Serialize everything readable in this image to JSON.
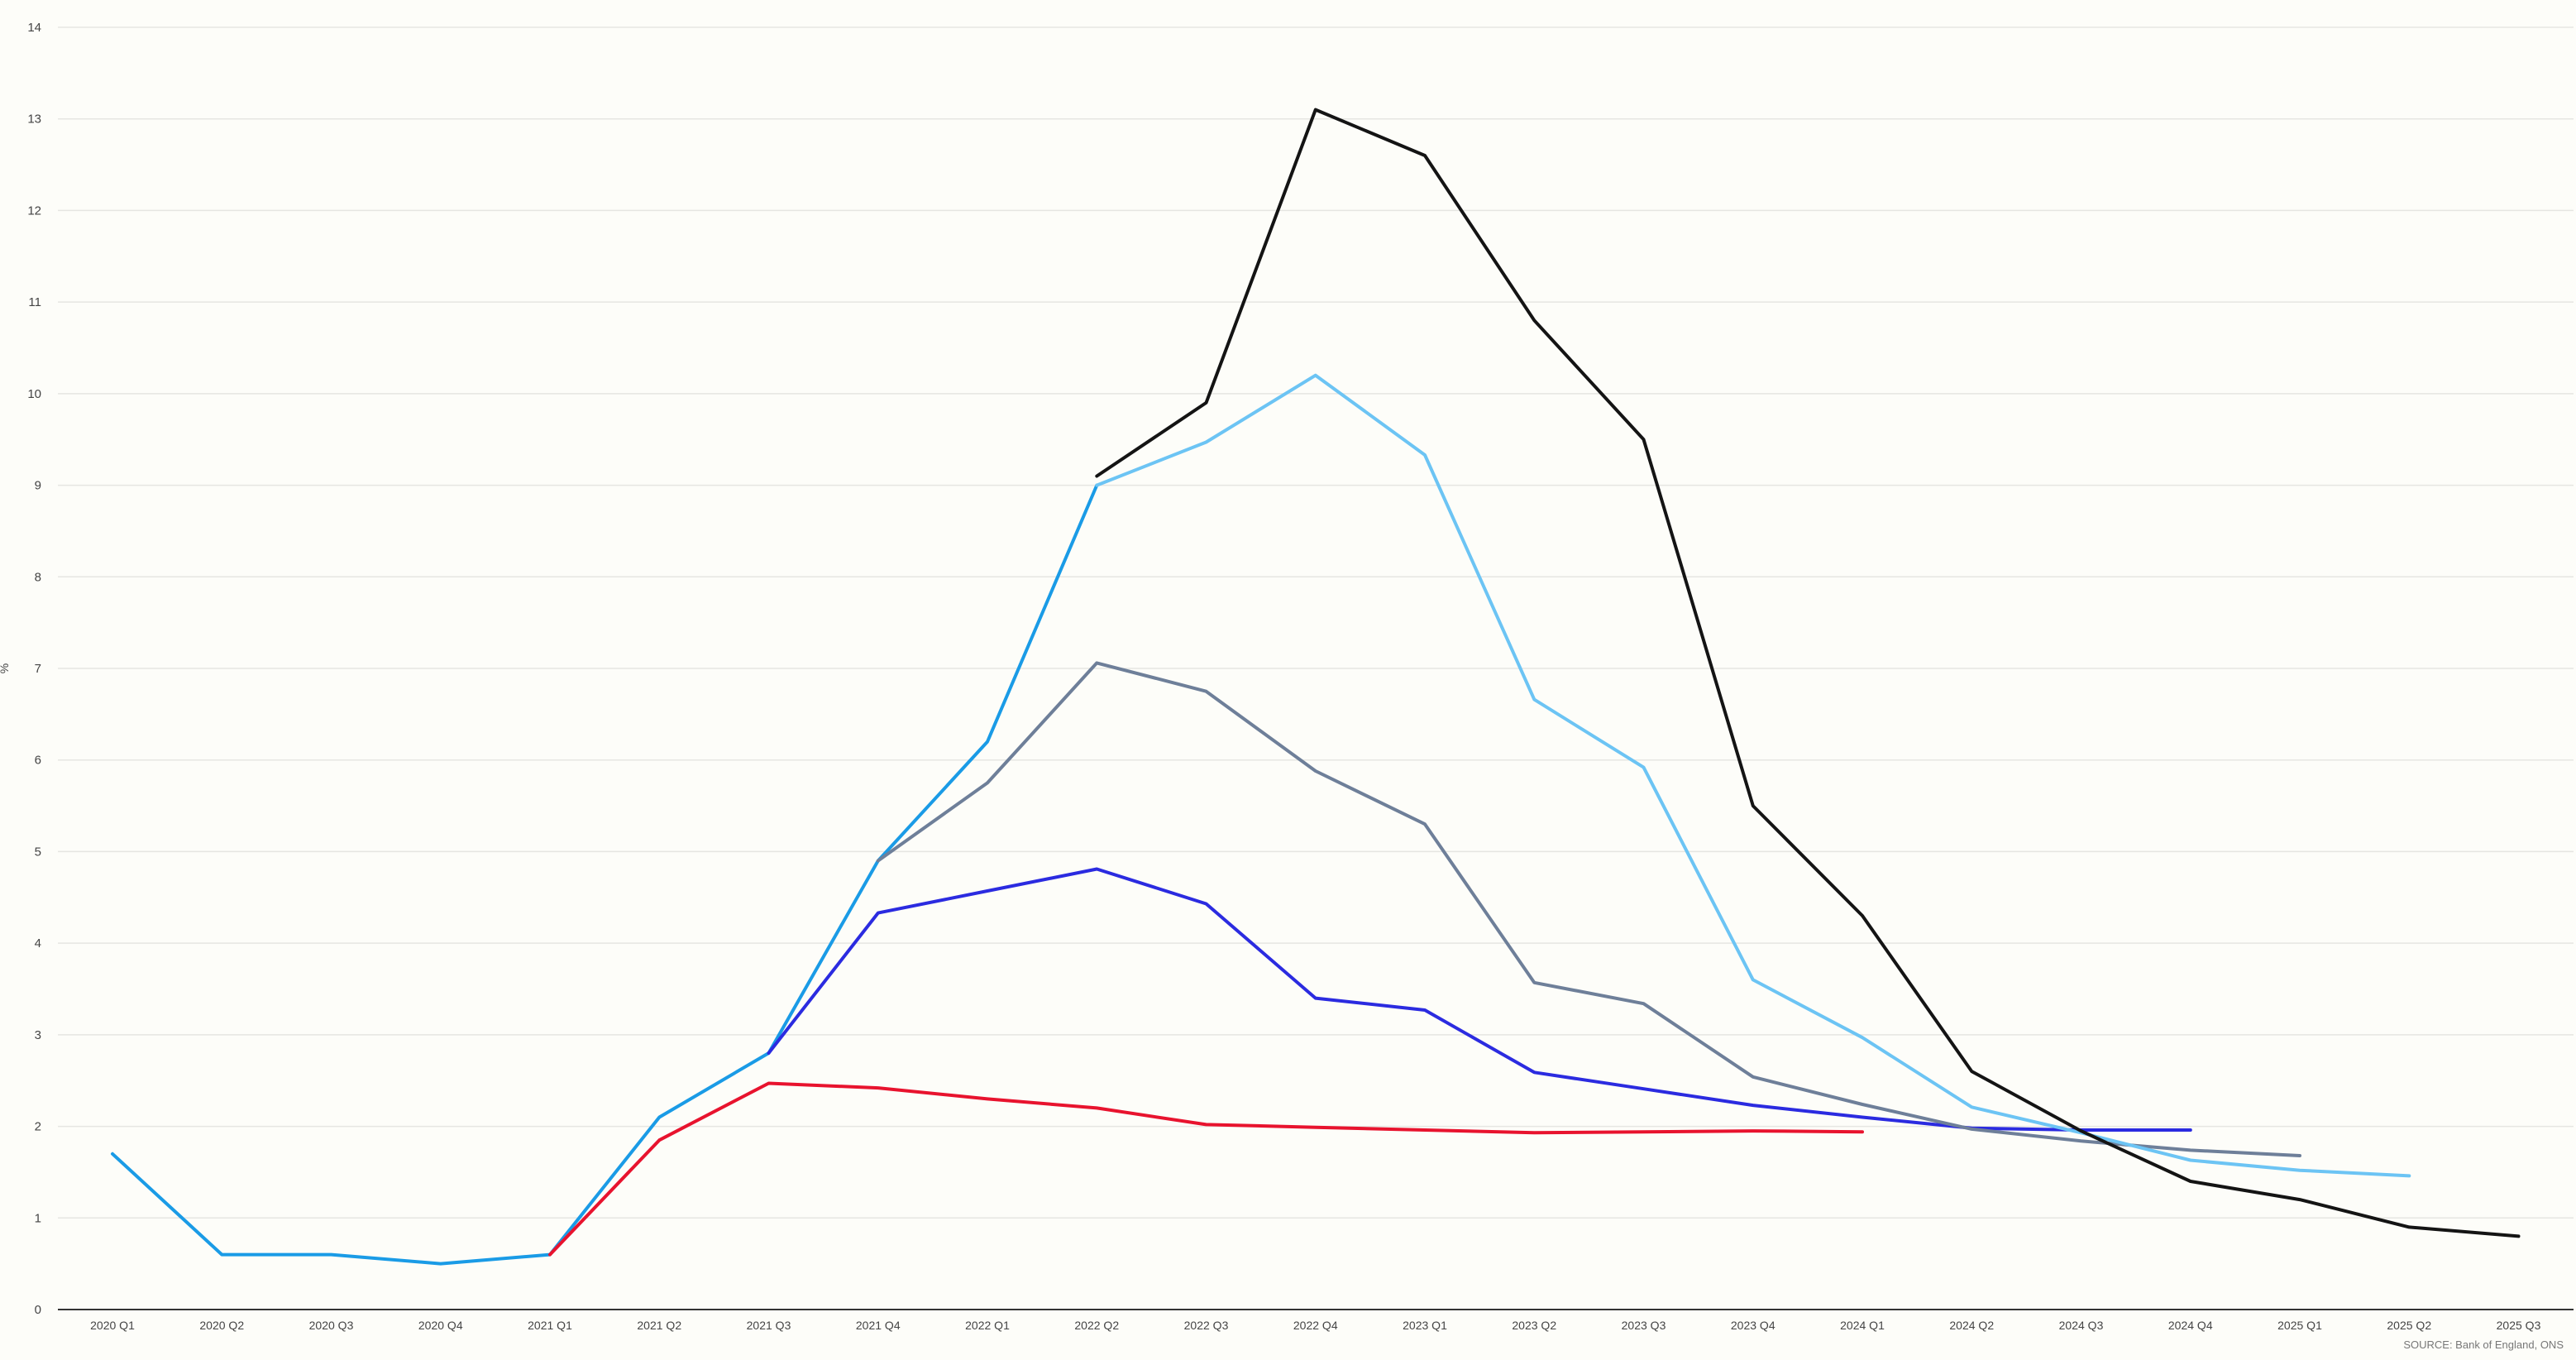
{
  "chart_data": {
    "type": "line",
    "title": "",
    "xlabel": "",
    "ylabel": "%",
    "ylim": [
      0,
      14
    ],
    "yticks": [
      "0",
      "1",
      "2",
      "3",
      "4",
      "5",
      "6",
      "7",
      "8",
      "9",
      "10",
      "11",
      "12",
      "13",
      "14"
    ],
    "grid": true,
    "legend": "none",
    "categories": [
      "2020 Q1",
      "2020 Q2",
      "2020 Q3",
      "2020 Q4",
      "2021 Q1",
      "2021 Q2",
      "2021 Q3",
      "2021 Q4",
      "2022 Q1",
      "2022 Q2",
      "2022 Q3",
      "2022 Q4",
      "2023 Q1",
      "2023 Q2",
      "2023 Q3",
      "2023 Q4",
      "2024 Q1",
      "2024 Q2",
      "2024 Q3",
      "2024 Q4",
      "2025 Q1",
      "2025 Q2",
      "2025 Q3"
    ],
    "series": [
      {
        "color": "#1a9be6",
        "values": [
          1.7,
          0.6,
          0.6,
          0.5,
          0.6,
          2.1,
          2.8,
          4.9,
          6.2,
          9.0,
          null,
          null,
          null,
          null,
          null,
          null,
          null,
          null,
          null,
          null,
          null,
          null,
          null
        ]
      },
      {
        "color": "#e8132e",
        "values": [
          null,
          null,
          null,
          null,
          0.6,
          1.85,
          2.47,
          2.42,
          2.3,
          2.2,
          2.02,
          1.99,
          1.96,
          1.93,
          1.94,
          1.95,
          1.94,
          null,
          null,
          null,
          null,
          null,
          null
        ]
      },
      {
        "color": "#2b2be0",
        "values": [
          null,
          null,
          null,
          null,
          null,
          null,
          2.8,
          4.33,
          4.57,
          4.81,
          4.43,
          3.4,
          3.27,
          2.59,
          2.41,
          2.23,
          2.1,
          1.98,
          1.96,
          1.96,
          null,
          null,
          null
        ]
      },
      {
        "color": "#6e7f99",
        "values": [
          null,
          null,
          null,
          null,
          null,
          null,
          null,
          4.9,
          5.75,
          7.06,
          6.75,
          5.88,
          5.3,
          3.57,
          3.34,
          2.54,
          2.24,
          1.97,
          1.84,
          1.74,
          1.68,
          null,
          null
        ]
      },
      {
        "color": "#6cc4f4",
        "values": [
          null,
          null,
          null,
          null,
          null,
          null,
          null,
          null,
          null,
          9.0,
          9.47,
          10.2,
          9.33,
          6.66,
          5.92,
          3.6,
          2.97,
          2.21,
          1.93,
          1.63,
          1.52,
          1.46,
          null
        ]
      },
      {
        "color": "#141414",
        "values": [
          null,
          null,
          null,
          null,
          null,
          null,
          null,
          null,
          null,
          9.1,
          9.9,
          13.1,
          12.6,
          10.8,
          9.5,
          5.5,
          4.3,
          2.6,
          1.95,
          1.4,
          1.2,
          0.9,
          0.8
        ]
      }
    ],
    "source": "SOURCE: Bank of England, ONS"
  }
}
